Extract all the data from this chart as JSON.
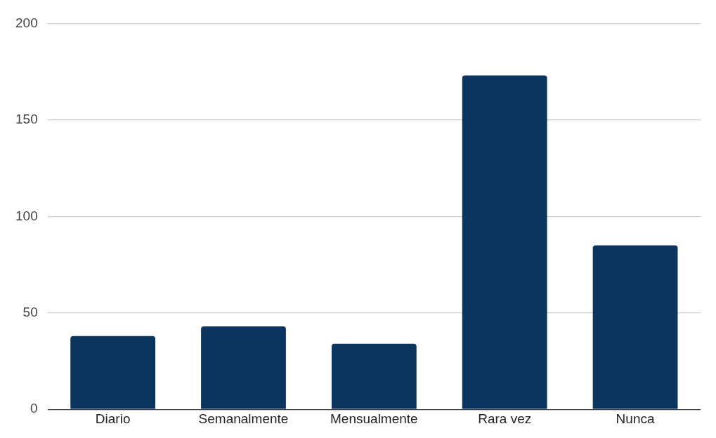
{
  "chart_data": {
    "type": "bar",
    "categories": [
      "Diario",
      "Semanalmente",
      "Mensualmente",
      "Rara vez",
      "Nunca"
    ],
    "values": [
      38,
      43,
      34,
      173,
      85
    ],
    "color": "#0b355f",
    "ylim": [
      0,
      200
    ],
    "yticks": [
      0,
      50,
      100,
      150,
      200
    ],
    "grid": "y",
    "legend": false
  }
}
